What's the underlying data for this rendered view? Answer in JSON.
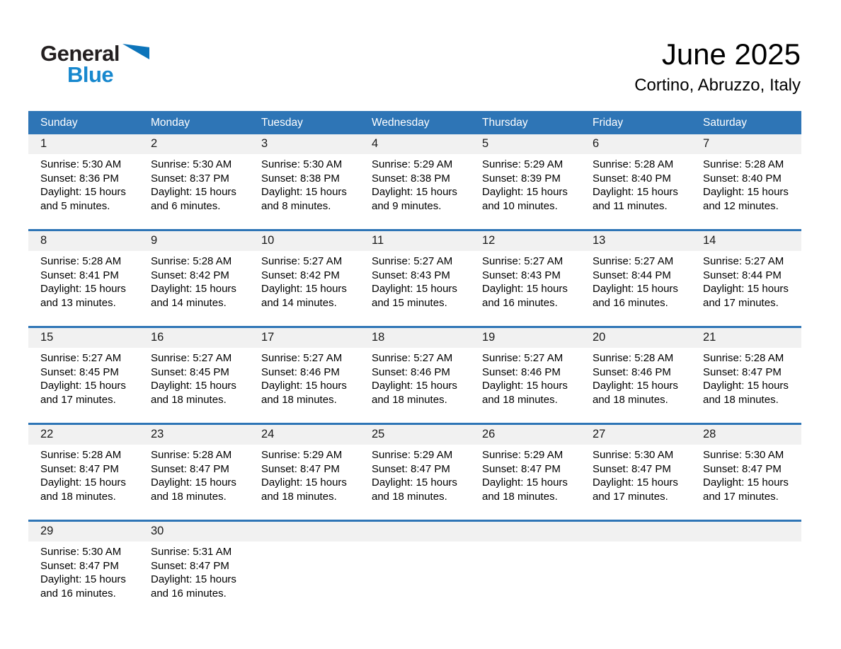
{
  "header": {
    "logo_part1": "General",
    "logo_part2": "Blue",
    "title": "June 2025",
    "subtitle": "Cortino, Abruzzo, Italy"
  },
  "colors": {
    "header_bar": "#2e75b6",
    "week_divider": "#2e75b6",
    "day_strip": "#f1f1f1",
    "logo_black": "#231f20",
    "logo_blue": "#1788ce"
  },
  "calendar": {
    "weekdays": [
      "Sunday",
      "Monday",
      "Tuesday",
      "Wednesday",
      "Thursday",
      "Friday",
      "Saturday"
    ],
    "weeks": [
      [
        {
          "day": "1",
          "lines": [
            "Sunrise: 5:30 AM",
            "Sunset: 8:36 PM",
            "Daylight: 15 hours",
            "and 5 minutes."
          ]
        },
        {
          "day": "2",
          "lines": [
            "Sunrise: 5:30 AM",
            "Sunset: 8:37 PM",
            "Daylight: 15 hours",
            "and 6 minutes."
          ]
        },
        {
          "day": "3",
          "lines": [
            "Sunrise: 5:30 AM",
            "Sunset: 8:38 PM",
            "Daylight: 15 hours",
            "and 8 minutes."
          ]
        },
        {
          "day": "4",
          "lines": [
            "Sunrise: 5:29 AM",
            "Sunset: 8:38 PM",
            "Daylight: 15 hours",
            "and 9 minutes."
          ]
        },
        {
          "day": "5",
          "lines": [
            "Sunrise: 5:29 AM",
            "Sunset: 8:39 PM",
            "Daylight: 15 hours",
            "and 10 minutes."
          ]
        },
        {
          "day": "6",
          "lines": [
            "Sunrise: 5:28 AM",
            "Sunset: 8:40 PM",
            "Daylight: 15 hours",
            "and 11 minutes."
          ]
        },
        {
          "day": "7",
          "lines": [
            "Sunrise: 5:28 AM",
            "Sunset: 8:40 PM",
            "Daylight: 15 hours",
            "and 12 minutes."
          ]
        }
      ],
      [
        {
          "day": "8",
          "lines": [
            "Sunrise: 5:28 AM",
            "Sunset: 8:41 PM",
            "Daylight: 15 hours",
            "and 13 minutes."
          ]
        },
        {
          "day": "9",
          "lines": [
            "Sunrise: 5:28 AM",
            "Sunset: 8:42 PM",
            "Daylight: 15 hours",
            "and 14 minutes."
          ]
        },
        {
          "day": "10",
          "lines": [
            "Sunrise: 5:27 AM",
            "Sunset: 8:42 PM",
            "Daylight: 15 hours",
            "and 14 minutes."
          ]
        },
        {
          "day": "11",
          "lines": [
            "Sunrise: 5:27 AM",
            "Sunset: 8:43 PM",
            "Daylight: 15 hours",
            "and 15 minutes."
          ]
        },
        {
          "day": "12",
          "lines": [
            "Sunrise: 5:27 AM",
            "Sunset: 8:43 PM",
            "Daylight: 15 hours",
            "and 16 minutes."
          ]
        },
        {
          "day": "13",
          "lines": [
            "Sunrise: 5:27 AM",
            "Sunset: 8:44 PM",
            "Daylight: 15 hours",
            "and 16 minutes."
          ]
        },
        {
          "day": "14",
          "lines": [
            "Sunrise: 5:27 AM",
            "Sunset: 8:44 PM",
            "Daylight: 15 hours",
            "and 17 minutes."
          ]
        }
      ],
      [
        {
          "day": "15",
          "lines": [
            "Sunrise: 5:27 AM",
            "Sunset: 8:45 PM",
            "Daylight: 15 hours",
            "and 17 minutes."
          ]
        },
        {
          "day": "16",
          "lines": [
            "Sunrise: 5:27 AM",
            "Sunset: 8:45 PM",
            "Daylight: 15 hours",
            "and 18 minutes."
          ]
        },
        {
          "day": "17",
          "lines": [
            "Sunrise: 5:27 AM",
            "Sunset: 8:46 PM",
            "Daylight: 15 hours",
            "and 18 minutes."
          ]
        },
        {
          "day": "18",
          "lines": [
            "Sunrise: 5:27 AM",
            "Sunset: 8:46 PM",
            "Daylight: 15 hours",
            "and 18 minutes."
          ]
        },
        {
          "day": "19",
          "lines": [
            "Sunrise: 5:27 AM",
            "Sunset: 8:46 PM",
            "Daylight: 15 hours",
            "and 18 minutes."
          ]
        },
        {
          "day": "20",
          "lines": [
            "Sunrise: 5:28 AM",
            "Sunset: 8:46 PM",
            "Daylight: 15 hours",
            "and 18 minutes."
          ]
        },
        {
          "day": "21",
          "lines": [
            "Sunrise: 5:28 AM",
            "Sunset: 8:47 PM",
            "Daylight: 15 hours",
            "and 18 minutes."
          ]
        }
      ],
      [
        {
          "day": "22",
          "lines": [
            "Sunrise: 5:28 AM",
            "Sunset: 8:47 PM",
            "Daylight: 15 hours",
            "and 18 minutes."
          ]
        },
        {
          "day": "23",
          "lines": [
            "Sunrise: 5:28 AM",
            "Sunset: 8:47 PM",
            "Daylight: 15 hours",
            "and 18 minutes."
          ]
        },
        {
          "day": "24",
          "lines": [
            "Sunrise: 5:29 AM",
            "Sunset: 8:47 PM",
            "Daylight: 15 hours",
            "and 18 minutes."
          ]
        },
        {
          "day": "25",
          "lines": [
            "Sunrise: 5:29 AM",
            "Sunset: 8:47 PM",
            "Daylight: 15 hours",
            "and 18 minutes."
          ]
        },
        {
          "day": "26",
          "lines": [
            "Sunrise: 5:29 AM",
            "Sunset: 8:47 PM",
            "Daylight: 15 hours",
            "and 18 minutes."
          ]
        },
        {
          "day": "27",
          "lines": [
            "Sunrise: 5:30 AM",
            "Sunset: 8:47 PM",
            "Daylight: 15 hours",
            "and 17 minutes."
          ]
        },
        {
          "day": "28",
          "lines": [
            "Sunrise: 5:30 AM",
            "Sunset: 8:47 PM",
            "Daylight: 15 hours",
            "and 17 minutes."
          ]
        }
      ],
      [
        {
          "day": "29",
          "lines": [
            "Sunrise: 5:30 AM",
            "Sunset: 8:47 PM",
            "Daylight: 15 hours",
            "and 16 minutes."
          ]
        },
        {
          "day": "30",
          "lines": [
            "Sunrise: 5:31 AM",
            "Sunset: 8:47 PM",
            "Daylight: 15 hours",
            "and 16 minutes."
          ]
        },
        null,
        null,
        null,
        null,
        null
      ]
    ]
  }
}
